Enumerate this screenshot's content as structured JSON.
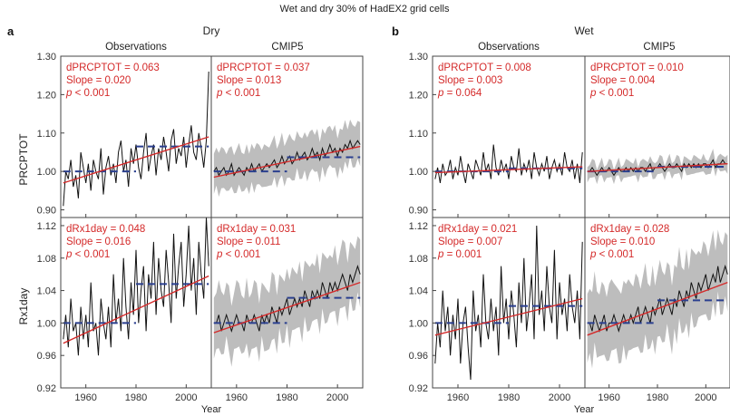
{
  "figure": {
    "title": "Wet and dry 30% of HadEX2 grid cells",
    "xlabel": "Year"
  },
  "colors": {
    "observed_line": "#111111",
    "trend_line": "#d42a2a",
    "step_mean": "#2a3f8f",
    "ensemble_band": "#bdbdbd",
    "annotation_text": "#d42a2a"
  },
  "chart_data": [
    {
      "panel": "a",
      "group": "Dry",
      "column": "Observations",
      "row": "PRCPTOT",
      "type": "line",
      "xlim": [
        1950,
        2010
      ],
      "ylim": [
        0.88,
        1.3
      ],
      "yticks": [
        "0.90",
        "1.00",
        "1.10",
        "1.20",
        "1.30"
      ],
      "xticks": [
        "1960",
        "1980",
        "2000"
      ],
      "annotation": [
        "dPRCPTOT = 0.063",
        "Slope = 0.020",
        "p < 0.001"
      ],
      "trend": [
        0.97,
        1.09
      ],
      "step_means": [
        [
          1951,
          1980,
          1.0
        ],
        [
          1980,
          2009,
          1.065
        ]
      ],
      "series": [
        {
          "x_start": 1951,
          "values": [
            0.91,
            1.0,
            0.98,
            1.03,
            0.96,
            0.99,
            0.93,
            1.05,
            1.01,
            0.97,
            1.02,
            0.95,
            1.03,
            1.0,
            0.98,
            1.06,
            0.94,
            1.01,
            1.04,
            0.99,
            1.02,
            0.97,
            1.05,
            1.08,
            1.0,
            1.03,
            0.96,
            1.06,
            1.02,
            1.07,
            1.01,
            0.98,
            1.05,
            1.1,
            1.0,
            1.04,
            1.07,
            0.99,
            1.06,
            1.03,
            1.09,
            1.05,
            1.0,
            1.08,
            1.11,
            1.02,
            1.06,
            1.04,
            1.09,
            1.01,
            1.07,
            1.12,
            1.05,
            1.03,
            1.1,
            1.06,
            1.01,
            1.08,
            1.26
          ]
        }
      ]
    },
    {
      "panel": "a",
      "group": "Dry",
      "column": "CMIP5",
      "row": "PRCPTOT",
      "type": "line",
      "xlim": [
        1950,
        2010
      ],
      "ylim": [
        0.88,
        1.3
      ],
      "xticks": [
        "1960",
        "1980",
        "2000"
      ],
      "annotation": [
        "dPRCPTOT = 0.037",
        "Slope = 0.013",
        "p < 0.001"
      ],
      "trend": [
        0.985,
        1.065
      ],
      "step_means": [
        [
          1951,
          1980,
          1.0
        ],
        [
          1980,
          2009,
          1.037
        ]
      ],
      "band": {
        "lower_offset": -0.05,
        "upper_offset": 0.055
      },
      "series": [
        {
          "x_start": 1951,
          "values": [
            1.0,
            1.01,
            0.99,
            1.0,
            1.01,
            0.99,
            1.0,
            1.02,
            0.99,
            1.0,
            1.01,
            1.0,
            0.99,
            1.01,
            1.0,
            1.02,
            1.0,
            1.01,
            1.02,
            1.0,
            1.01,
            1.02,
            1.01,
            1.02,
            1.03,
            1.01,
            1.02,
            1.04,
            1.02,
            1.03,
            1.04,
            1.02,
            1.03,
            1.05,
            1.03,
            1.04,
            1.05,
            1.03,
            1.04,
            1.06,
            1.04,
            1.05,
            1.03,
            1.06,
            1.04,
            1.05,
            1.07,
            1.05,
            1.06,
            1.04,
            1.06,
            1.05,
            1.07,
            1.06,
            1.08,
            1.06,
            1.07,
            1.08,
            1.07
          ]
        }
      ]
    },
    {
      "panel": "a",
      "group": "Dry",
      "column": "Observations",
      "row": "Rx1day",
      "type": "line",
      "xlim": [
        1950,
        2010
      ],
      "ylim": [
        0.92,
        1.13
      ],
      "yticks": [
        "0.92",
        "0.96",
        "1.00",
        "1.04",
        "1.08",
        "1.12"
      ],
      "xticks": [
        "1960",
        "1980",
        "2000"
      ],
      "annotation": [
        "dRx1day = 0.048",
        "Slope = 0.016",
        "p < 0.001"
      ],
      "trend": [
        0.975,
        1.058
      ],
      "step_means": [
        [
          1951,
          1980,
          1.0
        ],
        [
          1980,
          2009,
          1.048
        ]
      ],
      "series": [
        {
          "x_start": 1951,
          "values": [
            0.98,
            1.01,
            0.97,
            1.03,
            0.99,
            1.0,
            0.96,
            1.02,
            0.98,
            1.01,
            0.97,
            1.05,
            0.99,
            1.0,
            0.96,
            1.03,
            1.0,
            0.98,
            1.02,
            0.97,
            1.06,
            1.0,
            1.03,
            0.99,
            1.08,
            1.02,
            0.98,
            1.05,
            1.01,
            1.09,
            1.0,
            1.04,
            1.07,
            0.99,
            1.06,
            1.03,
            1.1,
            1.01,
            1.08,
            1.04,
            1.02,
            1.09,
            1.05,
            1.0,
            1.11,
            1.03,
            1.07,
            1.1,
            1.02,
            1.06,
            1.12,
            1.04,
            1.08,
            1.01,
            1.1,
            1.06,
            1.03,
            1.13,
            1.07
          ]
        }
      ]
    },
    {
      "panel": "a",
      "group": "Dry",
      "column": "CMIP5",
      "row": "Rx1day",
      "type": "line",
      "xlim": [
        1950,
        2010
      ],
      "ylim": [
        0.92,
        1.13
      ],
      "xticks": [
        "1960",
        "1980",
        "2000"
      ],
      "annotation": [
        "dRx1day = 0.031",
        "Slope = 0.011",
        "p < 0.001"
      ],
      "trend": [
        0.988,
        1.05
      ],
      "step_means": [
        [
          1951,
          1980,
          1.0
        ],
        [
          1980,
          2009,
          1.031
        ]
      ],
      "band": {
        "lower_offset": -0.035,
        "upper_offset": 0.04
      },
      "series": [
        {
          "x_start": 1951,
          "values": [
            1.0,
            1.0,
            1.01,
            0.99,
            1.0,
            1.01,
            1.0,
            0.99,
            1.0,
            1.01,
            1.0,
            1.0,
            0.99,
            1.01,
            1.0,
            1.0,
            1.01,
            1.0,
            0.99,
            1.01,
            1.0,
            1.01,
            1.0,
            1.02,
            1.01,
            1.0,
            1.02,
            1.01,
            1.02,
            1.03,
            1.01,
            1.02,
            1.03,
            1.02,
            1.03,
            1.02,
            1.04,
            1.03,
            1.02,
            1.04,
            1.03,
            1.04,
            1.03,
            1.05,
            1.04,
            1.03,
            1.05,
            1.04,
            1.05,
            1.04,
            1.05,
            1.06,
            1.05,
            1.04,
            1.06,
            1.05,
            1.06,
            1.07,
            1.06
          ]
        }
      ]
    },
    {
      "panel": "b",
      "group": "Wet",
      "column": "Observations",
      "row": "PRCPTOT",
      "type": "line",
      "xlim": [
        1950,
        2010
      ],
      "ylim": [
        0.88,
        1.3
      ],
      "yticks": [
        "0.90",
        "1.00",
        "1.10",
        "1.20",
        "1.30"
      ],
      "xticks": [
        "1960",
        "1980",
        "2000"
      ],
      "annotation": [
        "dPRCPTOT = 0.008",
        "Slope = 0.003",
        "p = 0.064"
      ],
      "trend": [
        0.997,
        1.012
      ],
      "step_means": [
        [
          1951,
          1980,
          1.0
        ],
        [
          1980,
          2009,
          1.008
        ]
      ],
      "series": [
        {
          "x_start": 1951,
          "values": [
            0.98,
            1.01,
            0.97,
            1.02,
            0.99,
            1.0,
            1.03,
            0.98,
            1.01,
            0.99,
            1.04,
            1.0,
            0.97,
            1.02,
            1.0,
            0.98,
            1.03,
            1.01,
            0.99,
            1.05,
            1.0,
            1.02,
            0.98,
            1.07,
            1.01,
            0.99,
            1.03,
            1.0,
            1.02,
            0.98,
            1.04,
            1.01,
            1.0,
            1.06,
            0.99,
            1.02,
            1.0,
            1.03,
            0.98,
            1.05,
            1.01,
            0.99,
            1.02,
            1.0,
            1.04,
            0.98,
            1.01,
            1.03,
            1.0,
            1.02,
            0.99,
            1.05,
            1.01,
            1.0,
            1.03,
            0.98,
            1.02,
            0.97,
            1.05
          ]
        }
      ]
    },
    {
      "panel": "b",
      "group": "Wet",
      "column": "CMIP5",
      "row": "PRCPTOT",
      "type": "line",
      "xlim": [
        1950,
        2010
      ],
      "ylim": [
        0.88,
        1.3
      ],
      "xticks": [
        "1960",
        "1980",
        "2000"
      ],
      "annotation": [
        "dPRCPTOT = 0.010",
        "Slope = 0.004",
        "p < 0.001"
      ],
      "trend": [
        1.0,
        1.02
      ],
      "step_means": [
        [
          1951,
          1980,
          1.0
        ],
        [
          1980,
          2009,
          1.012
        ]
      ],
      "band": {
        "lower_offset": -0.02,
        "upper_offset": 0.02
      },
      "series": [
        {
          "x_start": 1951,
          "values": [
            1.0,
            1.0,
            1.01,
            1.0,
            0.99,
            1.0,
            1.01,
            1.0,
            1.0,
            1.01,
            1.0,
            0.99,
            1.0,
            1.01,
            1.0,
            1.0,
            1.01,
            1.0,
            1.01,
            1.0,
            1.01,
            1.0,
            1.01,
            1.01,
            1.0,
            1.01,
            1.02,
            1.0,
            1.01,
            1.01,
            1.02,
            1.01,
            1.0,
            1.01,
            1.02,
            1.01,
            1.01,
            1.02,
            1.01,
            1.0,
            1.02,
            1.01,
            1.02,
            1.01,
            1.02,
            1.01,
            1.02,
            1.01,
            1.02,
            1.02,
            1.01,
            1.02,
            1.03,
            1.01,
            1.02,
            1.02,
            1.03,
            1.02,
            1.02
          ]
        }
      ]
    },
    {
      "panel": "b",
      "group": "Wet",
      "column": "Observations",
      "row": "Rx1day",
      "type": "line",
      "xlim": [
        1950,
        2010
      ],
      "ylim": [
        0.92,
        1.13
      ],
      "yticks": [
        "0.92",
        "0.96",
        "1.00",
        "1.04",
        "1.08",
        "1.12"
      ],
      "xticks": [
        "1960",
        "1980",
        "2000"
      ],
      "annotation": [
        "dRx1day = 0.021",
        "Slope = 0.007",
        "p = 0.001"
      ],
      "trend": [
        0.985,
        1.03
      ],
      "step_means": [
        [
          1951,
          1980,
          1.0
        ],
        [
          1980,
          2009,
          1.021
        ]
      ],
      "series": [
        {
          "x_start": 1951,
          "values": [
            0.95,
            1.0,
            0.97,
            1.04,
            0.99,
            1.02,
            0.96,
            1.01,
            0.98,
            1.03,
            0.95,
            1.0,
            1.02,
            0.97,
            0.93,
            1.04,
            0.99,
            1.01,
            0.97,
            1.06,
            1.0,
            0.98,
            1.03,
            0.99,
            1.02,
            0.96,
            1.07,
            1.0,
            1.03,
            0.98,
            1.04,
            1.01,
            0.97,
            1.05,
            1.0,
            1.08,
            0.99,
            1.02,
            1.06,
            0.98,
            1.12,
            1.01,
            1.04,
            0.99,
            1.07,
            1.02,
            1.0,
            1.09,
            0.98,
            1.05,
            1.01,
            1.03,
            0.99,
            1.06,
            1.02,
            1.0,
            1.04,
            0.98,
            1.1
          ]
        }
      ]
    },
    {
      "panel": "b",
      "group": "Wet",
      "column": "CMIP5",
      "row": "Rx1day",
      "type": "line",
      "xlim": [
        1950,
        2010
      ],
      "ylim": [
        0.92,
        1.13
      ],
      "xticks": [
        "1960",
        "1980",
        "2000"
      ],
      "annotation": [
        "dRx1day = 0.028",
        "Slope = 0.010",
        "p < 0.001"
      ],
      "trend": [
        0.985,
        1.05
      ],
      "step_means": [
        [
          1951,
          1980,
          1.0
        ],
        [
          1980,
          2009,
          1.028
        ]
      ],
      "band": {
        "lower_offset": -0.04,
        "upper_offset": 0.045
      },
      "series": [
        {
          "x_start": 1951,
          "values": [
            1.0,
            1.0,
            0.99,
            1.01,
            1.0,
            0.99,
            1.0,
            1.01,
            0.99,
            1.0,
            1.0,
            1.01,
            1.0,
            0.99,
            1.0,
            1.01,
            1.0,
            1.0,
            1.01,
            1.0,
            1.01,
            1.02,
            1.0,
            1.01,
            1.02,
            1.01,
            1.0,
            1.02,
            1.01,
            1.02,
            1.03,
            1.01,
            1.02,
            1.03,
            1.02,
            1.01,
            1.03,
            1.02,
            1.04,
            1.03,
            1.02,
            1.04,
            1.03,
            1.05,
            1.04,
            1.03,
            1.05,
            1.04,
            1.05,
            1.06,
            1.04,
            1.05,
            1.06,
            1.05,
            1.07,
            1.05,
            1.06,
            1.07,
            1.06
          ]
        }
      ]
    }
  ]
}
